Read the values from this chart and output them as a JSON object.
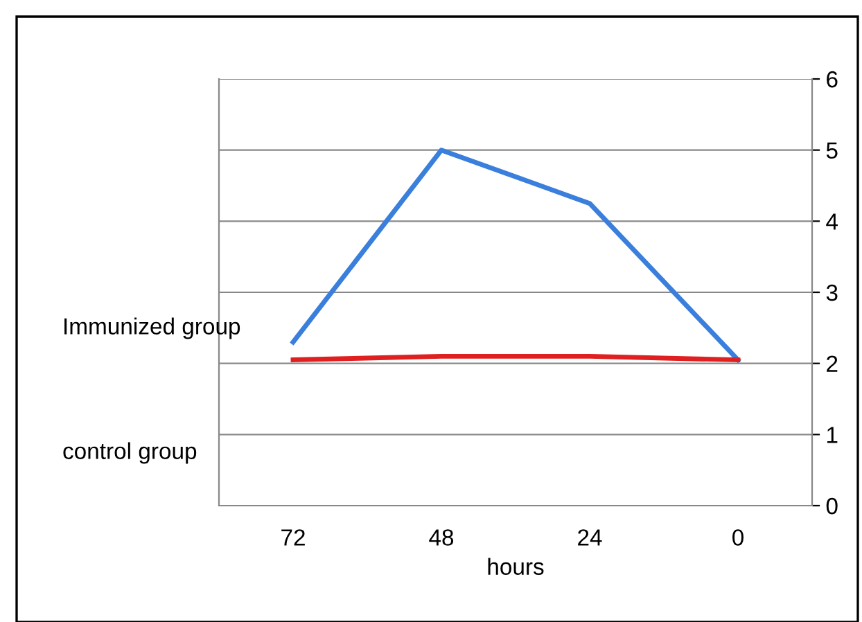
{
  "chart_data": {
    "type": "line",
    "xlabel": "hours",
    "categories": [
      "72",
      "48",
      "24",
      "0"
    ],
    "series": [
      {
        "color": "#3a7fdc",
        "values": [
          2.3,
          5.0,
          4.25,
          2.05
        ]
      },
      {
        "color": "#e02020",
        "values": [
          2.05,
          2.1,
          2.1,
          2.05
        ]
      }
    ],
    "ylim": [
      0,
      6
    ],
    "yticks": [
      0,
      1,
      2,
      3,
      4,
      5,
      6
    ],
    "grid": "y",
    "marker": "none",
    "line_style": "solid",
    "annotations": [
      "Immunized group",
      "control group"
    ]
  }
}
